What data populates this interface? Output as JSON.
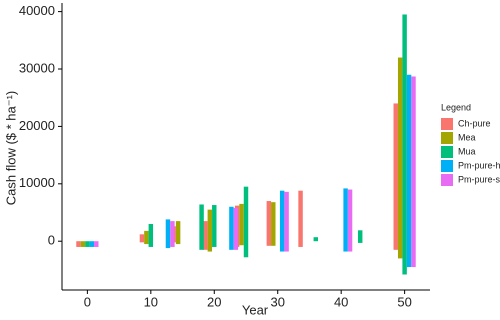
{
  "chart_data": {
    "type": "floating-bar",
    "xlabel": "Year",
    "ylabel": "Cash flow ($ * ha⁻¹)",
    "xlim": [
      -4,
      54
    ],
    "xticks": [
      0,
      10,
      20,
      30,
      40,
      50
    ],
    "ylim": [
      -8500,
      41500
    ],
    "yticks": [
      0,
      10000,
      20000,
      30000,
      40000
    ],
    "legend_title": "Legend",
    "legend": "right",
    "series": [
      {
        "name": "Ch-pure",
        "color": "#F8766D",
        "x": [
          0,
          10,
          15,
          20,
          25,
          30,
          35,
          50
        ],
        "values": [
          0,
          1200,
          2600,
          3500,
          6200,
          7000,
          8800,
          24000
        ],
        "lows": [
          -1000,
          -200,
          -200,
          -1500,
          -1000,
          -800,
          -1000,
          -1500
        ]
      },
      {
        "name": "Mea",
        "color": "#A3A500",
        "x": [
          0,
          10,
          15,
          20,
          25,
          30,
          50
        ],
        "values": [
          0,
          1800,
          3500,
          5500,
          6500,
          6800,
          32000
        ],
        "lows": [
          -1000,
          -500,
          -500,
          -1800,
          -700,
          -800,
          -3000
        ]
      },
      {
        "name": "Mua",
        "color": "#00BF7D",
        "x": [
          0,
          10,
          18,
          20,
          25,
          36,
          43,
          50
        ],
        "values": [
          0,
          3000,
          6400,
          6300,
          9500,
          700,
          1900,
          39500
        ],
        "lows": [
          -1000,
          -1000,
          -1500,
          -1000,
          -2800,
          0,
          -300,
          -5800
        ]
      },
      {
        "name": "Pm-pure-hd",
        "color": "#00B0F6",
        "x": [
          0,
          12,
          22,
          30,
          40,
          50
        ],
        "values": [
          0,
          3800,
          6000,
          8800,
          9200,
          29000
        ],
        "lows": [
          -1000,
          -1200,
          -1500,
          -1800,
          -1800,
          -4500
        ]
      },
      {
        "name": "Pm-pure-st",
        "color": "#E76BF3",
        "x": [
          0,
          12,
          22,
          30,
          40,
          50
        ],
        "values": [
          0,
          3500,
          5800,
          8600,
          9000,
          28700
        ],
        "lows": [
          -1000,
          -1000,
          -1500,
          -1800,
          -1800,
          -4500
        ]
      }
    ]
  }
}
